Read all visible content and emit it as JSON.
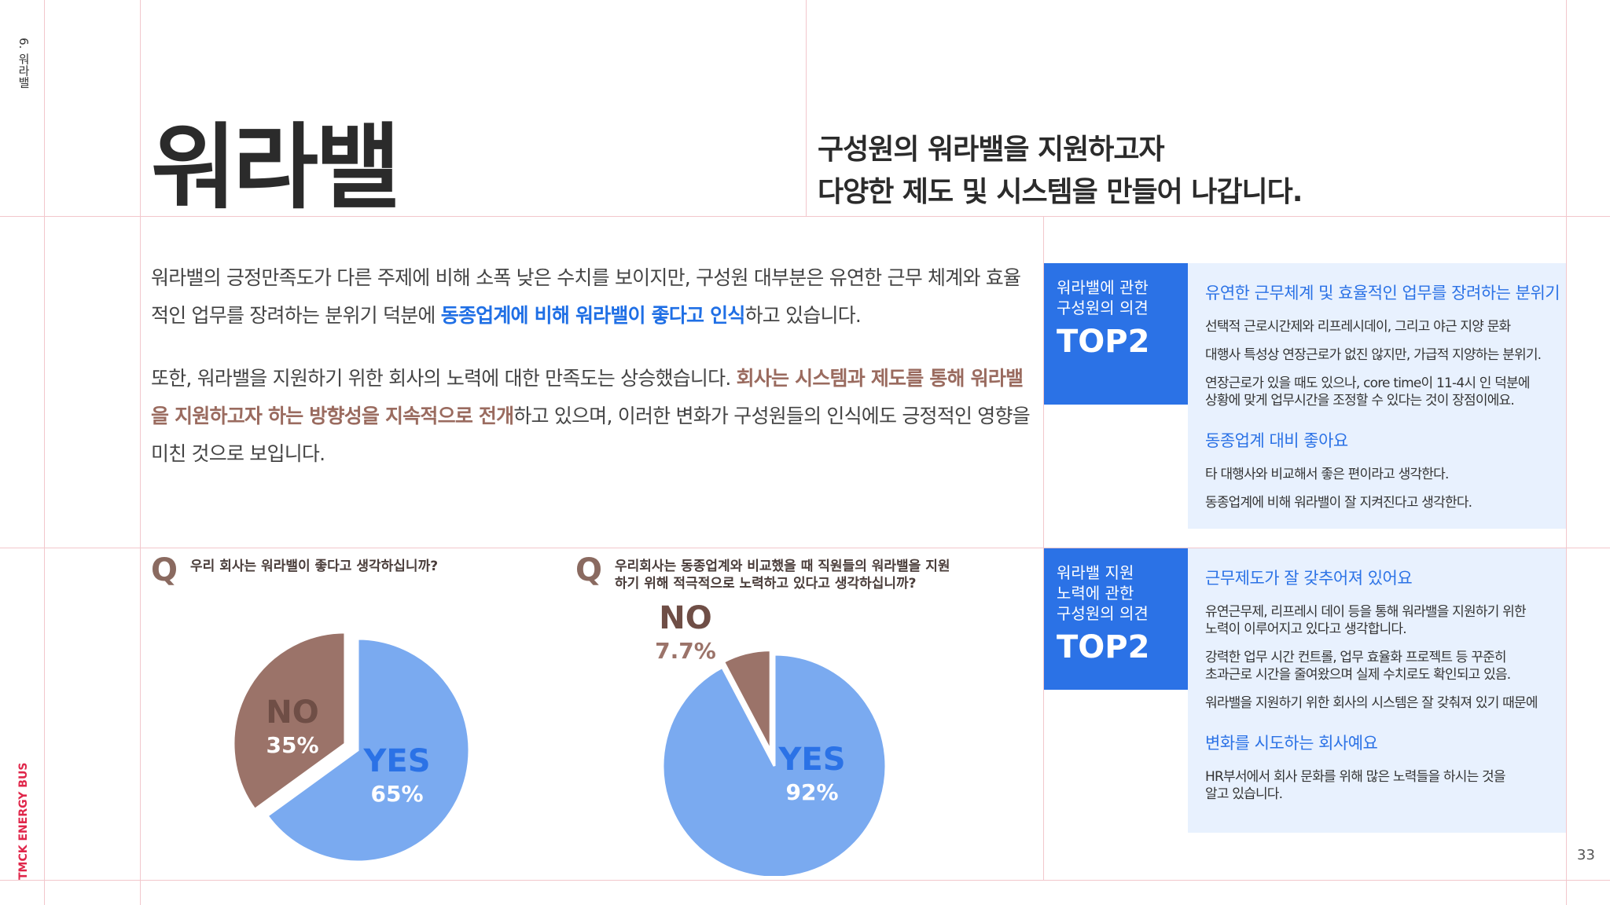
{
  "side": {
    "section": "6. 워라밸",
    "brand": "TMCK ENERGY BUS"
  },
  "title": "워라밸",
  "subtitle": [
    "구성원의 워라밸을 지원하고자",
    "다양한 제도 및 시스템을 만들어 나갑니다."
  ],
  "body": {
    "p1_a": "워라밸의 긍정만족도가 다른 주제에 비해 소폭 낮은 수치를 보이지만, 구성원 대부분은 유연한 근무 체계와 효율적인 업무를 장려하는 분위기 덕분에 ",
    "p1_hl": "동종업계에 비해 워라밸이 좋다고 인식",
    "p1_b": "하고 있습니다.",
    "p2_a": "또한, 워라밸을 지원하기 위한 회사의 노력에 대한 만족도는 상승했습니다. ",
    "p2_hl": "회사는 시스템과 제도를 통해 워라밸을 지원하고자 하는 방향성을 지속적으로 전개",
    "p2_b": "하고 있으며, 이러한 변화가 구성원들의 인식에도 긍정적인 영향을 미친 것으로 보입니다."
  },
  "q1": {
    "mark": "Q",
    "text": "우리 회사는 워라밸이 좋다고 생각하십니까?"
  },
  "q2": {
    "mark": "Q",
    "line1": "우리회사는 동종업계와 비교했을 때 직원들의 워라밸을 지원",
    "line2": "하기 위해 적극적으로 노력하고 있다고 생각하십니까?"
  },
  "chart_data": [
    {
      "type": "pie",
      "title": "우리 회사는 워라밸이 좋다고 생각하십니까?",
      "slices": [
        {
          "label": "YES",
          "value": 65,
          "display": "65%",
          "color": "#7aaaf0"
        },
        {
          "label": "NO",
          "value": 35,
          "display": "35%",
          "color": "#9b7369"
        }
      ]
    },
    {
      "type": "pie",
      "title": "우리회사는 동종업계와 비교했을 때 직원들의 워라밸을 지원하기 위해 적극적으로 노력하고 있다고 생각하십니까?",
      "slices": [
        {
          "label": "YES",
          "value": 92,
          "display": "92%",
          "color": "#7aaaf0"
        },
        {
          "label": "NO",
          "value": 7.7,
          "display": "7.7%",
          "color": "#9b7369"
        }
      ]
    }
  ],
  "colors": {
    "blue": "#2b72e6",
    "light_blue": "#7aaaf0",
    "brown": "#9b7369",
    "panel": "#e8f1fe",
    "grid": "#f2c7cc"
  },
  "op1": {
    "label1": "워라밸에 관한",
    "label2": "구성원의 의견",
    "top": "TOP2",
    "groups": [
      {
        "title": "유연한 근무체계 및 효율적인 업무를 장려하는 분위기",
        "lines": [
          "선택적 근로시간제와 리프레시데이, 그리고 야근 지양 문화",
          "대행사 특성상 연장근로가 없진 않지만, 가급적 지양하는 분위기.",
          "연장근로가 있을 때도 있으나, core time이 11-4시 인 덕분에\n상황에 맞게 업무시간을 조정할 수 있다는 것이 장점이에요."
        ]
      },
      {
        "title": "동종업계 대비 좋아요",
        "lines": [
          "타 대행사와 비교해서 좋은 편이라고 생각한다.",
          "동종업계에 비해 워라밸이 잘 지켜진다고 생각한다."
        ]
      }
    ]
  },
  "op2": {
    "label1": "워라밸 지원",
    "label2": "노력에 관한",
    "label3": "구성원의 의견",
    "top": "TOP2",
    "groups": [
      {
        "title": "근무제도가 잘 갖추어져 있어요",
        "lines": [
          "유연근무제, 리프레시 데이 등을 통해 워라밸을 지원하기 위한\n노력이 이루어지고 있다고 생각합니다.",
          "강력한 업무 시간 컨트롤, 업무 효율화 프로젝트 등 꾸준히\n초과근로 시간을 줄여왔으며 실제 수치로도 확인되고 있음.",
          "워라밸을 지원하기 위한 회사의 시스템은 잘 갖춰져 있기 때문에"
        ]
      },
      {
        "title": "변화를 시도하는 회사예요",
        "lines": [
          "HR부서에서 회사 문화를 위해 많은 노력들을 하시는 것을\n알고 있습니다."
        ]
      }
    ]
  },
  "page_number": "33"
}
